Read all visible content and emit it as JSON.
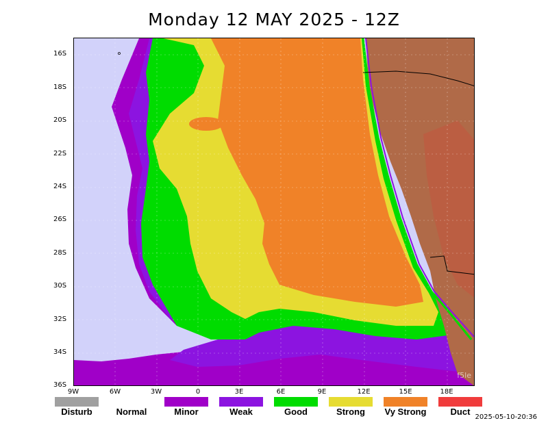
{
  "title": "Monday 12 MAY 2025 - 12Z",
  "lat_labels": [
    "16S",
    "18S",
    "20S",
    "22S",
    "24S",
    "26S",
    "28S",
    "30S",
    "32S",
    "34S",
    "36S"
  ],
  "lon_labels": [
    "9W",
    "6W",
    "3W",
    "0",
    "3E",
    "6E",
    "9E",
    "12E",
    "15E",
    "18E"
  ],
  "legend": [
    {
      "label": "Disturb",
      "color": "#a0a0a0"
    },
    {
      "label": "Normal",
      "color": "#ffffff"
    },
    {
      "label": "Minor",
      "color": "#a000c8"
    },
    {
      "label": "Weak",
      "color": "#8c14e0"
    },
    {
      "label": "Good",
      "color": "#00dc00"
    },
    {
      "label": "Strong",
      "color": "#e6dc32"
    },
    {
      "label": "Vy Strong",
      "color": "#f08228"
    },
    {
      "label": "Duct",
      "color": "#f03c3c"
    }
  ],
  "timestamp": "2025-05-10-20:36",
  "watermark": "f5le",
  "colors": {
    "normal_sea": "#d2d2fa",
    "land": "#b06a48"
  }
}
